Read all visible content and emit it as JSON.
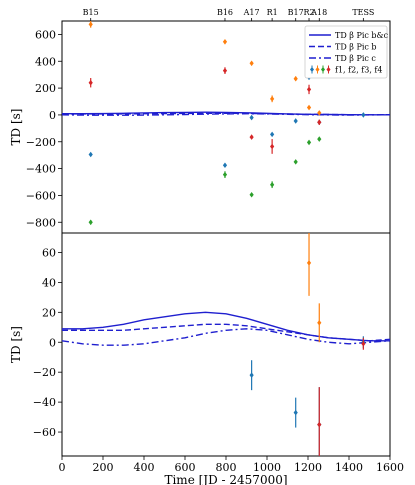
{
  "chart_data": [
    {
      "type": "scatter",
      "ylabel": "TD [s]",
      "ylim": [
        -880,
        700
      ],
      "xlim": [
        0,
        1600
      ],
      "yticks": [
        -800,
        -600,
        -400,
        -200,
        0,
        200,
        400,
        600
      ],
      "top_labels": [
        {
          "label": "B15",
          "x": 140
        },
        {
          "label": "B16",
          "x": 795
        },
        {
          "label": "A17",
          "x": 925
        },
        {
          "label": "R1",
          "x": 1025
        },
        {
          "label": "B17",
          "x": 1140
        },
        {
          "label": "R2",
          "x": 1205
        },
        {
          "label": "A18",
          "x": 1255
        },
        {
          "label": "TESS",
          "x": 1470
        }
      ],
      "legend": {
        "placement": "top-right",
        "entries": [
          {
            "label": "TD β Pic b&c",
            "style": "solid"
          },
          {
            "label": "TD β Pic b",
            "style": "dashed"
          },
          {
            "label": "TD β Pic c",
            "style": "dashdot"
          },
          {
            "label": "f1, f2, f3, f4",
            "style": "markers"
          }
        ]
      },
      "series": [
        {
          "name": "f1",
          "color": "#1f77b4",
          "points": [
            {
              "x": 140,
              "y": -295,
              "err": 10
            },
            {
              "x": 795,
              "y": -375,
              "err": 10
            },
            {
              "x": 925,
              "y": -20,
              "err": 10
            },
            {
              "x": 1025,
              "y": -145,
              "err": 10
            },
            {
              "x": 1140,
              "y": -45,
              "err": 10
            },
            {
              "x": 1205,
              "y": 280,
              "err": 10
            },
            {
              "x": 1255,
              "y": -55,
              "err": 10
            },
            {
              "x": 1470,
              "y": 0,
              "err": 5
            }
          ]
        },
        {
          "name": "f2",
          "color": "#ff7f0e",
          "points": [
            {
              "x": 140,
              "y": 675,
              "err": 25
            },
            {
              "x": 795,
              "y": 545,
              "err": 10
            },
            {
              "x": 925,
              "y": 385,
              "err": 10
            },
            {
              "x": 1025,
              "y": 120,
              "err": 25
            },
            {
              "x": 1140,
              "y": 270,
              "err": 15
            },
            {
              "x": 1205,
              "y": 55,
              "err": 10
            },
            {
              "x": 1255,
              "y": 15,
              "err": 10
            }
          ]
        },
        {
          "name": "f3",
          "color": "#2ca02c",
          "points": [
            {
              "x": 140,
              "y": -800,
              "err": 15
            },
            {
              "x": 795,
              "y": -445,
              "err": 25
            },
            {
              "x": 925,
              "y": -595,
              "err": 10
            },
            {
              "x": 1025,
              "y": -520,
              "err": 25
            },
            {
              "x": 1140,
              "y": -350,
              "err": 10
            },
            {
              "x": 1205,
              "y": -205,
              "err": 10
            },
            {
              "x": 1255,
              "y": -180,
              "err": 10
            }
          ]
        },
        {
          "name": "f4",
          "color": "#d62728",
          "points": [
            {
              "x": 140,
              "y": 240,
              "err": 35
            },
            {
              "x": 795,
              "y": 330,
              "err": 25
            },
            {
              "x": 925,
              "y": -165,
              "err": 15
            },
            {
              "x": 1025,
              "y": -235,
              "err": 55
            },
            {
              "x": 1205,
              "y": 190,
              "err": 35
            },
            {
              "x": 1255,
              "y": -55,
              "err": 20
            }
          ]
        }
      ],
      "model_curves": [
        {
          "name": "TD β Pic b&c",
          "style": "solid",
          "x": [
            0,
            100,
            200,
            300,
            400,
            500,
            600,
            700,
            800,
            900,
            1000,
            1100,
            1200,
            1300,
            1400,
            1500,
            1600
          ],
          "y": [
            9,
            9,
            10,
            12,
            15,
            17,
            19,
            20,
            19,
            16,
            12,
            8,
            5,
            3,
            2,
            1,
            1
          ]
        },
        {
          "name": "TD β Pic b",
          "style": "dashed",
          "x": [
            0,
            100,
            200,
            300,
            400,
            500,
            600,
            700,
            800,
            900,
            1000,
            1100,
            1200,
            1300,
            1400,
            1500,
            1600
          ],
          "y": [
            8,
            8,
            8,
            8,
            9,
            10,
            11,
            12,
            12,
            11,
            9,
            7,
            5,
            3,
            2,
            1,
            2
          ]
        },
        {
          "name": "TD β Pic c",
          "style": "dashdot",
          "x": [
            0,
            100,
            200,
            300,
            400,
            500,
            600,
            700,
            800,
            900,
            1000,
            1100,
            1200,
            1300,
            1400,
            1500,
            1600
          ],
          "y": [
            1,
            -1,
            -2,
            -2,
            -1,
            1,
            3,
            6,
            8,
            9,
            8,
            5,
            2,
            0,
            -1,
            0,
            1
          ]
        }
      ]
    },
    {
      "type": "scatter",
      "xlabel": "Time [JD - 2457000]",
      "ylabel": "TD [s]",
      "xlim": [
        0,
        1600
      ],
      "ylim": [
        -76,
        73
      ],
      "xticks": [
        0,
        200,
        400,
        600,
        800,
        1000,
        1200,
        1400,
        1600
      ],
      "yticks": [
        -60,
        -40,
        -20,
        0,
        20,
        40,
        60
      ],
      "series": [
        {
          "name": "f1",
          "color": "#1f77b4",
          "points": [
            {
              "x": 925,
              "y": -22,
              "err": 10
            },
            {
              "x": 1140,
              "y": -47,
              "err": 10
            },
            {
              "x": 1255,
              "y": -55,
              "err": 25
            },
            {
              "x": 1470,
              "y": 0,
              "err": 4
            }
          ]
        },
        {
          "name": "f2",
          "color": "#ff7f0e",
          "points": [
            {
              "x": 1205,
              "y": 53,
              "err": 22
            },
            {
              "x": 1255,
              "y": 13,
              "err": 13
            }
          ]
        },
        {
          "name": "f4",
          "color": "#d62728",
          "points": [
            {
              "x": 1255,
              "y": -55,
              "err": 25
            },
            {
              "x": 1470,
              "y": -1,
              "err": 4
            }
          ]
        }
      ],
      "model_curves": [
        {
          "name": "TD β Pic b&c",
          "style": "solid",
          "x": [
            0,
            100,
            200,
            300,
            400,
            500,
            600,
            700,
            800,
            900,
            1000,
            1100,
            1200,
            1300,
            1400,
            1500,
            1600
          ],
          "y": [
            9,
            9,
            10,
            12,
            15,
            17,
            19,
            20,
            19,
            16,
            12,
            8,
            5,
            3,
            2,
            1,
            1
          ]
        },
        {
          "name": "TD β Pic b",
          "style": "dashed",
          "x": [
            0,
            100,
            200,
            300,
            400,
            500,
            600,
            700,
            800,
            900,
            1000,
            1100,
            1200,
            1300,
            1400,
            1500,
            1600
          ],
          "y": [
            8,
            8,
            8,
            8,
            9,
            10,
            11,
            12,
            12,
            11,
            9,
            7,
            5,
            3,
            2,
            1,
            2
          ]
        },
        {
          "name": "TD β Pic c",
          "style": "dashdot",
          "x": [
            0,
            100,
            200,
            300,
            400,
            500,
            600,
            700,
            800,
            900,
            1000,
            1100,
            1200,
            1300,
            1400,
            1500,
            1600
          ],
          "y": [
            1,
            -1,
            -2,
            -2,
            -1,
            1,
            3,
            6,
            8,
            9,
            8,
            5,
            2,
            0,
            -1,
            0,
            1
          ]
        }
      ]
    }
  ]
}
